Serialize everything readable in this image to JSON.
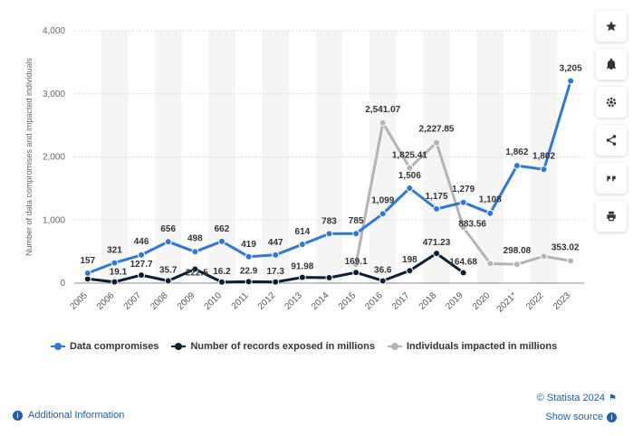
{
  "chart_data": {
    "type": "line",
    "ylabel": "Number of data compromises and impacted individuals",
    "xlabel": "",
    "ylim": [
      0,
      4000
    ],
    "yticks": [
      0,
      1000,
      2000,
      3000,
      4000
    ],
    "ytick_labels": [
      "0",
      "1,000",
      "2,000",
      "3,000",
      "4,000"
    ],
    "categories": [
      "2005",
      "2006",
      "2007",
      "2008",
      "2009",
      "2010",
      "2011",
      "2012",
      "2013",
      "2014",
      "2015",
      "2016",
      "2017",
      "2018",
      "2019",
      "2020",
      "2021*",
      "2022",
      "2023"
    ],
    "series": [
      {
        "name": "Data compromises",
        "color": "#2f78d4",
        "values": [
          157,
          321,
          446,
          656,
          498,
          662,
          419,
          447,
          614,
          783,
          785,
          1099,
          1506,
          1175,
          1279,
          1108,
          1862,
          1802,
          3205
        ],
        "labels": [
          "157",
          "321",
          "446",
          "656",
          "498",
          "662",
          "419",
          "447",
          "614",
          "783",
          "785",
          "1,099",
          "1,506",
          "1,175",
          "1,279",
          "1,108",
          "1,862",
          "1,802",
          "3,205"
        ]
      },
      {
        "name": "Number of records exposed in millions",
        "color": "#0c1e33",
        "values": [
          66.9,
          19.1,
          127.7,
          35.7,
          222.5,
          16.2,
          22.9,
          17.3,
          91.98,
          85.61,
          169.1,
          36.6,
          198,
          471.23,
          164.68,
          null,
          null,
          null,
          null
        ],
        "labels": [
          "",
          "19.1",
          "127.7",
          "35.7",
          "222.5",
          "16.2",
          "22.9",
          "17.3",
          "91.98",
          "",
          "169.1",
          "36.6",
          "198",
          "471.23",
          "164.68",
          "",
          "",
          "",
          ""
        ]
      },
      {
        "name": "Individuals impacted in millions",
        "color": "#b4b4b4",
        "values": [
          null,
          null,
          null,
          null,
          null,
          null,
          null,
          null,
          null,
          null,
          300,
          2541.07,
          1825.41,
          2227.85,
          883.56,
          310.12,
          298.08,
          425.23,
          353.02
        ],
        "labels": [
          "",
          "",
          "",
          "",
          "",
          "",
          "",
          "",
          "",
          "",
          "",
          "2,541.07",
          "1,825.41",
          "2,227.85",
          "883.56",
          "",
          "298.08",
          "",
          "353.02"
        ]
      }
    ],
    "grid": true,
    "legend_position": "bottom-left"
  },
  "legend": {
    "items": [
      "Data compromises",
      "Number of records exposed in millions",
      "Individuals impacted in millions"
    ]
  },
  "toolbar": {
    "icons": [
      "star-icon",
      "bell-icon",
      "gear-icon",
      "share-icon",
      "quote-icon",
      "print-icon"
    ]
  },
  "footer": {
    "additional_info": "Additional Information",
    "copyright": "© Statista 2024",
    "show_source": "Show source"
  }
}
